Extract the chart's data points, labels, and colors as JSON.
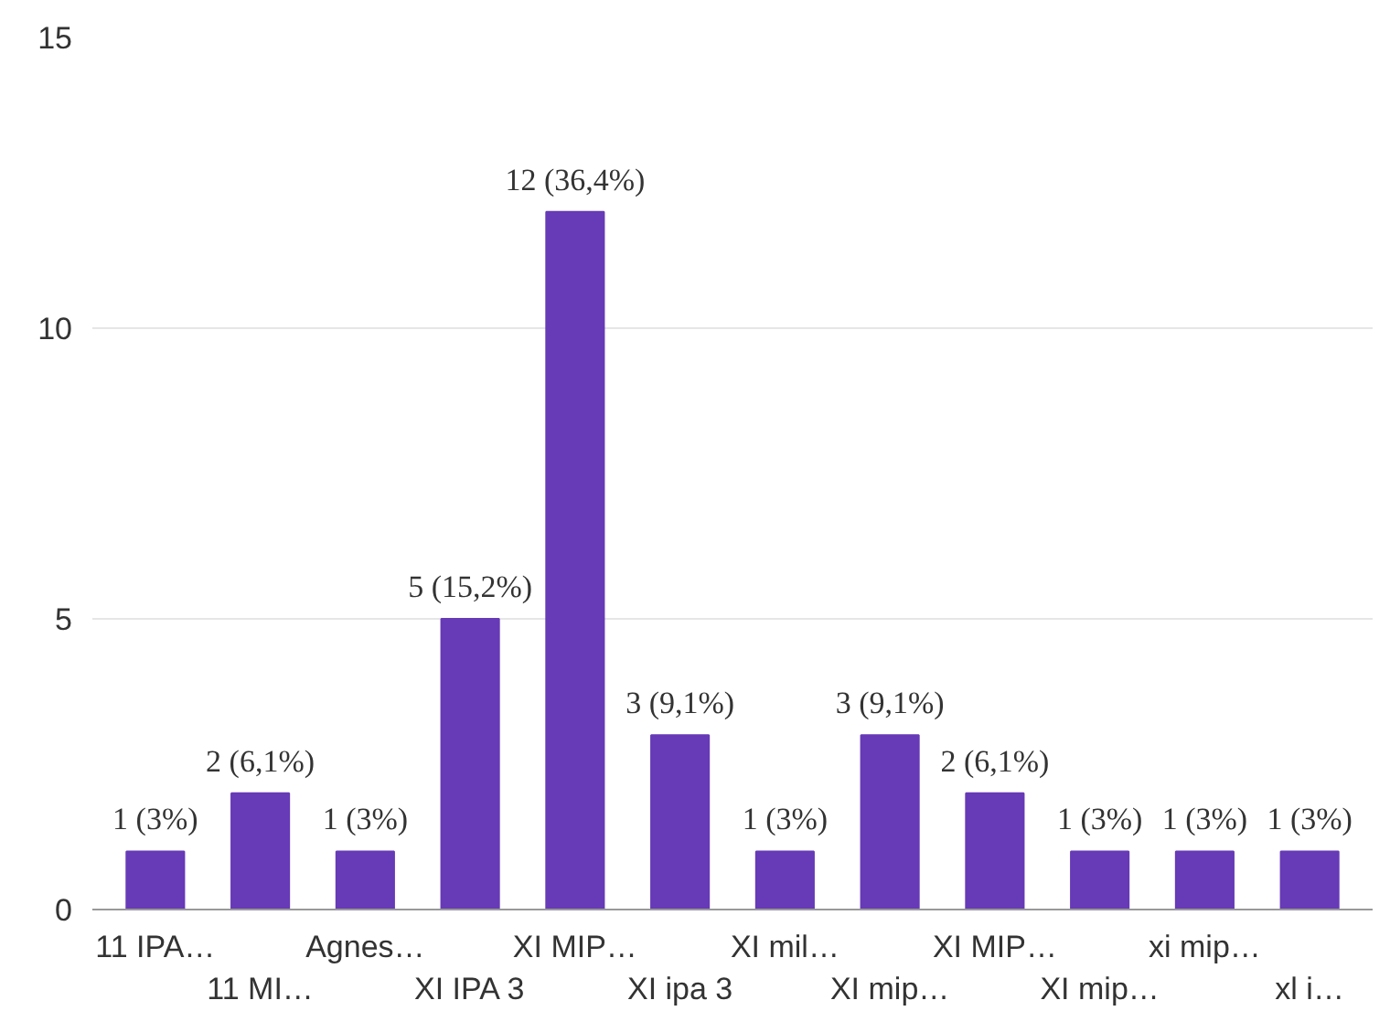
{
  "chart_data": {
    "type": "bar",
    "categories": [
      "11 IPA…",
      "11 MI…",
      "Agnes…",
      "XI IPA 3",
      "XI MIP…",
      "XI ipa 3",
      "XI mil…",
      "XI mip…",
      "XI MIP…",
      "XI mip…",
      "xi mip…",
      "xl i…"
    ],
    "values": [
      1,
      2,
      1,
      5,
      12,
      3,
      1,
      3,
      2,
      1,
      1,
      1
    ],
    "value_labels": [
      "1 (3%)",
      "2 (6,1%)",
      "1 (3%)",
      "5 (15,2%)",
      "12 (36,4%)",
      "3 (9,1%)",
      "1 (3%)",
      "3 (9,1%)",
      "2 (6,1%)",
      "1 (3%)",
      "1 (3%)",
      "1 (3%)"
    ],
    "color": "#673ab7",
    "ylim": [
      0,
      15
    ],
    "yticks": [
      0,
      5,
      10,
      15
    ],
    "grid": "y"
  }
}
